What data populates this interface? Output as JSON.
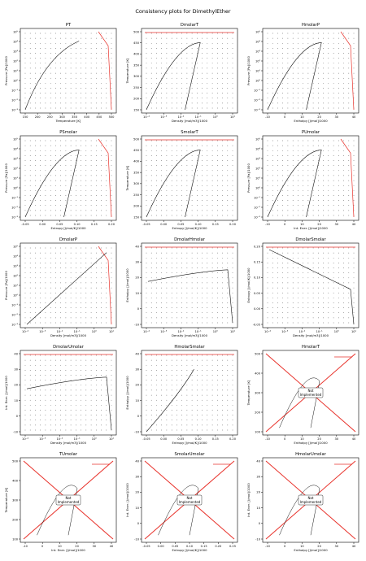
{
  "suptitle": "Consistency plots for DimethylEther",
  "colors": {
    "reference": "#e8322b",
    "computed": "#111111",
    "grid": "#555555",
    "axis": "#000000"
  },
  "chart_data": [
    {
      "id": "PT",
      "type": "scatter",
      "title": "PT",
      "xlabel": "Temperature [K]",
      "ylabel": "Pressure [Pa]/1000",
      "xticks": [
        "150",
        "200",
        "250",
        "300",
        "350",
        "400",
        "450",
        "500"
      ],
      "yticks": [
        "10⁻³",
        "10⁻²",
        "10⁻¹",
        "10⁰",
        "10¹",
        "10²",
        "10³",
        "10⁴",
        "10⁵"
      ],
      "curve": "saturation",
      "boundary": "right"
    },
    {
      "id": "DmolarT",
      "type": "scatter",
      "title": "DmolarT",
      "xlabel": "Density [mol/m3]/1000",
      "ylabel": "Temperature [K]",
      "xticks": [
        "10⁻⁴",
        "10⁻³",
        "10⁻²",
        "10⁻¹",
        "10⁰",
        "10¹"
      ],
      "yticks": [
        "150",
        "200",
        "250",
        "300",
        "350",
        "400",
        "450",
        "500"
      ],
      "curve": "dome",
      "boundary": "top"
    },
    {
      "id": "HmolarP",
      "type": "scatter",
      "title": "HmolarP",
      "xlabel": "Enthalpy [J/mol]/1000",
      "ylabel": "Pressure [Pa]/1000",
      "xticks": [
        "-10",
        "0",
        "10",
        "20",
        "30",
        "40"
      ],
      "yticks": [
        "10⁻³",
        "10⁻²",
        "10⁻¹",
        "10⁰",
        "10¹",
        "10²",
        "10³",
        "10⁴",
        "10⁵"
      ],
      "curve": "dome",
      "boundary": "right"
    },
    {
      "id": "PSmolar",
      "type": "scatter",
      "title": "PSmolar",
      "xlabel": "Entropy [J/mol/K]/1000",
      "ylabel": "Pressure [Pa]/1000",
      "xticks": [
        "-0.05",
        "0.00",
        "0.05",
        "0.10",
        "0.15",
        "0.20"
      ],
      "yticks": [
        "10⁻³",
        "10⁻²",
        "10⁻¹",
        "10⁰",
        "10¹",
        "10²",
        "10³",
        "10⁴",
        "10⁵"
      ],
      "curve": "dome",
      "boundary": "right"
    },
    {
      "id": "SmolarT",
      "type": "scatter",
      "title": "SmolarT",
      "xlabel": "Entropy [J/mol/K]/1000",
      "ylabel": "Temperature [K]",
      "xticks": [
        "-0.05",
        "0.00",
        "0.05",
        "0.10",
        "0.15",
        "0.20"
      ],
      "yticks": [
        "150",
        "200",
        "250",
        "300",
        "350",
        "400",
        "450",
        "500"
      ],
      "curve": "dome",
      "boundary": "top"
    },
    {
      "id": "PUmolar",
      "type": "scatter",
      "title": "PUmolar",
      "xlabel": "Int. Ener. [J/mol]/1000",
      "ylabel": "Pressure [Pa]/1000",
      "xticks": [
        "-10",
        "0",
        "10",
        "20",
        "30",
        "40"
      ],
      "yticks": [
        "10⁻³",
        "10⁻²",
        "10⁻¹",
        "10⁰",
        "10¹",
        "10²",
        "10³",
        "10⁴",
        "10⁵"
      ],
      "curve": "dome",
      "boundary": "right"
    },
    {
      "id": "DmolarP",
      "type": "scatter",
      "title": "DmolarP",
      "xlabel": "Density [mol/m3]/1000",
      "ylabel": "Pressure [Pa]/1000",
      "xticks": [
        "10⁻⁴",
        "10⁻³",
        "10⁻²",
        "10⁻¹",
        "10⁰",
        "10¹"
      ],
      "yticks": [
        "10⁻³",
        "10⁻²",
        "10⁻¹",
        "10⁰",
        "10¹",
        "10²",
        "10³",
        "10⁴",
        "10⁵"
      ],
      "curve": "diagonal",
      "boundary": "right"
    },
    {
      "id": "DmolarHmolar",
      "type": "scatter",
      "title": "DmolarHmolar",
      "xlabel": "Density [mol/m3]/1000",
      "ylabel": "Enthalpy [J/mol]/1000",
      "xticks": [
        "10⁻⁴",
        "10⁻³",
        "10⁻²",
        "10⁻¹",
        "10⁰",
        "10¹"
      ],
      "yticks": [
        "-10",
        "0",
        "10",
        "20",
        "30",
        "40"
      ],
      "curve": "flat",
      "boundary": "top"
    },
    {
      "id": "DmolarSmolar",
      "type": "scatter",
      "title": "DmolarSmolar",
      "xlabel": "Density [mol/m3]/1000",
      "ylabel": "Entropy [J/mol/K]/1000",
      "xticks": [
        "10⁻⁴",
        "10⁻³",
        "10⁻²",
        "10⁻¹",
        "10⁰",
        "10¹"
      ],
      "yticks": [
        "-0.05",
        "0.00",
        "0.05",
        "0.10",
        "0.15",
        "0.20"
      ],
      "curve": "decline",
      "boundary": "top"
    },
    {
      "id": "DmolarUmolar",
      "type": "scatter",
      "title": "DmolarUmolar",
      "xlabel": "Density [mol/m3]/1000",
      "ylabel": "Int. Ener. [J/mol]/1000",
      "xticks": [
        "10⁻⁴",
        "10⁻³",
        "10⁻²",
        "10⁻¹",
        "10⁰",
        "10¹"
      ],
      "yticks": [
        "-10",
        "0",
        "10",
        "20",
        "30",
        "40"
      ],
      "curve": "flat",
      "boundary": "top"
    },
    {
      "id": "HmolarSmolar",
      "type": "scatter",
      "title": "HmolarSmolar",
      "xlabel": "Entropy [J/mol/K]/1000",
      "ylabel": "Enthalpy [J/mol]/1000",
      "xticks": [
        "-0.05",
        "0.00",
        "0.05",
        "0.10",
        "0.15",
        "0.20"
      ],
      "yticks": [
        "-10",
        "0",
        "10",
        "20",
        "30",
        "40"
      ],
      "curve": "rise",
      "boundary": "top"
    },
    {
      "id": "HmolarT",
      "type": "scatter",
      "title": "HmolarT",
      "xlabel": "Enthalpy [J/mol]/1000",
      "ylabel": "Temperature [K]",
      "xticks": [
        "-10",
        "0",
        "10",
        "20",
        "30",
        "40"
      ],
      "yticks": [
        "100",
        "200",
        "300",
        "400",
        "500"
      ],
      "notice": "Not Implemented",
      "curve": "x",
      "boundary": "none"
    },
    {
      "id": "TUmolar",
      "type": "scatter",
      "title": "TUmolar",
      "xlabel": "Int. Ener. [J/mol]/1000",
      "ylabel": "Temperature [K]",
      "xticks": [
        "-10",
        "0",
        "10",
        "20",
        "30",
        "40"
      ],
      "yticks": [
        "100",
        "200",
        "300",
        "400",
        "500"
      ],
      "notice": "Not Implemented",
      "curve": "x",
      "boundary": "none"
    },
    {
      "id": "SmolarUmolar",
      "type": "scatter",
      "title": "SmolarUmolar",
      "xlabel": "Entropy [J/mol/K]/1000",
      "ylabel": "Int. Ener. [J/mol]/1000",
      "xticks": [
        "-0.05",
        "0.00",
        "0.05",
        "0.10",
        "0.15",
        "0.20",
        "0.25"
      ],
      "yticks": [
        "-10",
        "0",
        "10",
        "20",
        "30",
        "40"
      ],
      "notice": "Not Implemented",
      "curve": "x",
      "boundary": "none"
    },
    {
      "id": "HmolarUmolar",
      "type": "scatter",
      "title": "HmolarUmolar",
      "xlabel": "Enthalpy [J/mol]/1000",
      "ylabel": "Int. Ener. [J/mol]/1000",
      "xticks": [
        "-10",
        "0",
        "10",
        "20",
        "30",
        "40"
      ],
      "yticks": [
        "-10",
        "0",
        "10",
        "20",
        "30",
        "40"
      ],
      "notice": "Not Implemented",
      "curve": "x",
      "boundary": "none"
    }
  ]
}
